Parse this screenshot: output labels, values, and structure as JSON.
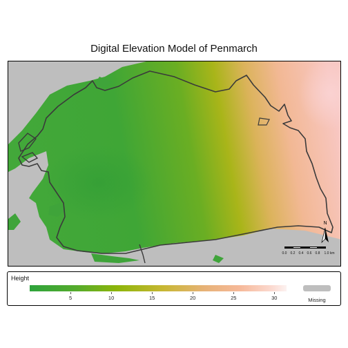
{
  "title": "Digital Elevation Model of Penmarch",
  "legend": {
    "title": "Height",
    "ticks": [
      {
        "value": 5,
        "label": "5"
      },
      {
        "value": 10,
        "label": "10"
      },
      {
        "value": 15,
        "label": "15"
      },
      {
        "value": 20,
        "label": "20"
      },
      {
        "value": 25,
        "label": "25"
      },
      {
        "value": 30,
        "label": "30"
      }
    ],
    "range": [
      0,
      31.5
    ],
    "missing_label": "Missing",
    "missing_color": "#bebebe"
  },
  "scalebar": {
    "labels": [
      "0.0",
      "0.2",
      "0.4",
      "0.6",
      "0.8",
      "1.0 km"
    ]
  },
  "north_arrow": {
    "label": "N"
  },
  "colors": {
    "low": "#2ea33c",
    "mid": "#c7b733",
    "high": "#fcf2f1",
    "boundary": "#3a3a3a"
  }
}
